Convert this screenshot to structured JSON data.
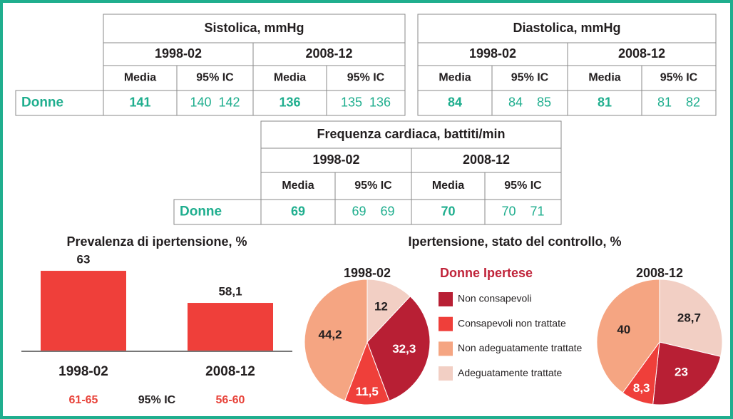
{
  "tables": [
    {
      "title": "Sistolica, mmHg",
      "periods": [
        "1998-02",
        "2008-12"
      ],
      "columns": [
        "Media",
        "95% IC",
        "Media",
        "95% IC"
      ],
      "row_label": "Donne",
      "means": [
        141,
        136
      ],
      "ci": [
        [
          140,
          142
        ],
        [
          135,
          136
        ]
      ]
    },
    {
      "title": "Diastolica, mmHg",
      "periods": [
        "1998-02",
        "2008-12"
      ],
      "columns": [
        "Media",
        "95% IC",
        "Media",
        "95% IC"
      ],
      "means": [
        84,
        81
      ],
      "ci": [
        [
          84,
          85
        ],
        [
          81,
          82
        ]
      ]
    },
    {
      "title": "Frequenza cardiaca, battiti/min",
      "periods": [
        "1998-02",
        "2008-12"
      ],
      "columns": [
        "Media",
        "95% IC",
        "Media",
        "95% IC"
      ],
      "row_label": "Donne",
      "means": [
        69,
        70
      ],
      "ci": [
        [
          69,
          69
        ],
        [
          70,
          71
        ]
      ]
    }
  ],
  "chart_data": [
    {
      "type": "bar",
      "title": "Prevalenza di ipertensione, %",
      "categories": [
        "1998-02",
        "2008-12"
      ],
      "values": [
        63,
        58.1
      ],
      "value_labels": [
        "63",
        "58,1"
      ],
      "color": "#ef3f3a",
      "ylim": [
        50.7,
        66
      ],
      "ci_label": "95% IC",
      "ci": [
        "61-65",
        "56-60"
      ]
    },
    {
      "type": "pie",
      "title": "Ipertensione, stato del controllo, %",
      "legend_title": "Donne Ipertese",
      "labels": [
        "Non consapevoli",
        "Consapevoli non trattate",
        "Non adeguatamente trattate",
        "Adeguatamente trattate"
      ],
      "colors": [
        "#b81f34",
        "#ef3f3a",
        "#f5a582",
        "#f2cfc4"
      ],
      "pies": [
        {
          "name": "1998-02",
          "values": [
            32.3,
            11.5,
            44.2,
            12
          ],
          "value_labels": [
            "32,3",
            "11,5",
            "44,2",
            "12"
          ]
        },
        {
          "name": "2008-12",
          "values": [
            23,
            8.3,
            40,
            28.7
          ],
          "value_labels": [
            "23",
            "8,3",
            "40",
            "28,7"
          ]
        }
      ]
    }
  ]
}
